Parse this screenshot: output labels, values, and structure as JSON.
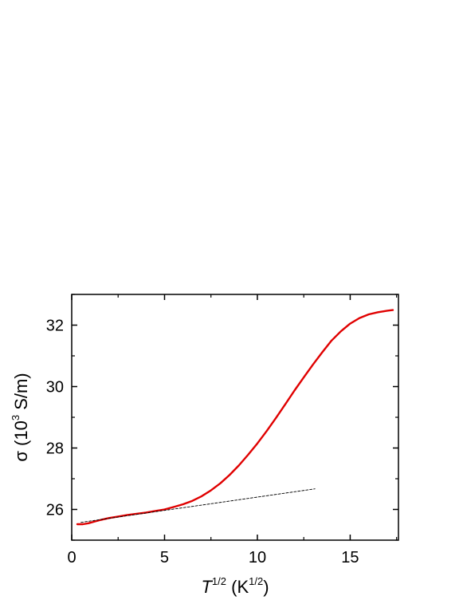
{
  "chart_data": {
    "type": "line",
    "title": "",
    "xlabel": {
      "symbol": "T",
      "exponent": "1/2",
      "unit_open": " (K",
      "unit_exponent": "1/2",
      "unit_close": ")"
    },
    "ylabel": {
      "symbol": "σ",
      "unit_open": " (10",
      "unit_exponent": "3",
      "unit_close": " S/m)"
    },
    "xlim": [
      0,
      17.6
    ],
    "ylim": [
      25,
      33
    ],
    "x_ticks": [
      0,
      5,
      10,
      15
    ],
    "x_tick_labels": [
      "0",
      "5",
      "10",
      "15"
    ],
    "x_minor_ticks": [
      2.5,
      7.5,
      12.5,
      17.5
    ],
    "y_ticks": [
      26,
      28,
      30,
      32
    ],
    "y_tick_labels": [
      "26",
      "28",
      "30",
      "32"
    ],
    "y_minor_ticks": [
      25,
      27,
      29,
      31,
      33
    ],
    "grid": false,
    "legend": "none",
    "series": [
      {
        "style": "solid",
        "color": "#e00000",
        "x": [
          0.3,
          0.6,
          0.9,
          1.2,
          1.5,
          2,
          2.5,
          3,
          3.5,
          4,
          4.5,
          5,
          5.5,
          6,
          6.5,
          7,
          7.5,
          8,
          8.5,
          9,
          9.5,
          10,
          10.5,
          11,
          11.5,
          12,
          12.5,
          13,
          13.5,
          14,
          14.5,
          15,
          15.5,
          16,
          16.5,
          17,
          17.3
        ],
        "y": [
          25.52,
          25.52,
          25.55,
          25.6,
          25.65,
          25.72,
          25.77,
          25.82,
          25.86,
          25.9,
          25.95,
          26.0,
          26.08,
          26.17,
          26.28,
          26.43,
          26.62,
          26.85,
          27.12,
          27.43,
          27.78,
          28.15,
          28.55,
          28.98,
          29.42,
          29.87,
          30.3,
          30.72,
          31.12,
          31.5,
          31.8,
          32.05,
          32.23,
          32.35,
          32.42,
          32.47,
          32.49
        ]
      },
      {
        "style": "dashed",
        "color": "#000000",
        "x": [
          0.5,
          13.1
        ],
        "y": [
          25.58,
          26.67
        ]
      }
    ]
  }
}
